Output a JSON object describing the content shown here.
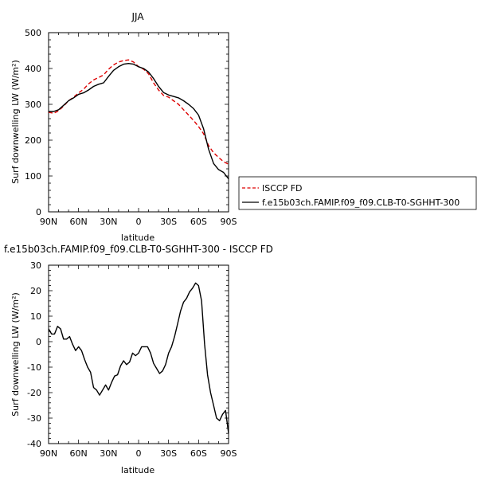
{
  "chart_data": [
    {
      "type": "line",
      "title": "JJA",
      "xlabel": "latitude",
      "ylabel": "Surf downwelling LW (W/m²)",
      "xlim": [
        -90,
        90
      ],
      "ylim": [
        0,
        500
      ],
      "xticks": [
        {
          "value": -90,
          "label": "90N"
        },
        {
          "value": -60,
          "label": "60N"
        },
        {
          "value": -30,
          "label": "30N"
        },
        {
          "value": 0,
          "label": "0"
        },
        {
          "value": 30,
          "label": "30S"
        },
        {
          "value": 60,
          "label": "60S"
        },
        {
          "value": 90,
          "label": "90S"
        }
      ],
      "yticks": [
        0,
        100,
        200,
        300,
        400,
        500
      ],
      "grid": false,
      "legend_position": "right",
      "series": [
        {
          "name": "ISCCP FD",
          "color": "#dd0000",
          "dash": true,
          "x": [
            -90,
            -85,
            -80,
            -75,
            -70,
            -65,
            -60,
            -55,
            -50,
            -45,
            -40,
            -35,
            -30,
            -25,
            -20,
            -15,
            -10,
            -5,
            0,
            5,
            10,
            15,
            20,
            25,
            30,
            35,
            40,
            45,
            50,
            55,
            60,
            65,
            70,
            75,
            80,
            85,
            90
          ],
          "y": [
            278,
            275,
            282,
            295,
            310,
            320,
            332,
            342,
            357,
            368,
            375,
            382,
            398,
            410,
            418,
            422,
            424,
            418,
            405,
            398,
            385,
            360,
            340,
            325,
            320,
            310,
            300,
            285,
            270,
            255,
            238,
            218,
            185,
            165,
            152,
            140,
            133
          ]
        },
        {
          "name": "f.e15b03ch.FAMIP.f09_f09.CLB-T0-SGHHT-300",
          "color": "#000000",
          "dash": false,
          "x": [
            -90,
            -85,
            -80,
            -75,
            -70,
            -65,
            -60,
            -55,
            -50,
            -45,
            -40,
            -35,
            -30,
            -25,
            -20,
            -15,
            -10,
            -5,
            0,
            5,
            10,
            15,
            20,
            25,
            30,
            35,
            40,
            45,
            50,
            55,
            60,
            65,
            70,
            75,
            80,
            85,
            90
          ],
          "y": [
            280,
            280,
            285,
            297,
            310,
            318,
            328,
            332,
            340,
            350,
            356,
            360,
            378,
            395,
            405,
            412,
            414,
            412,
            405,
            400,
            390,
            372,
            350,
            333,
            326,
            322,
            318,
            310,
            300,
            288,
            270,
            232,
            175,
            135,
            118,
            110,
            92
          ]
        }
      ]
    },
    {
      "type": "line",
      "title": "f.e15b03ch.FAMIP.f09_f09.CLB-T0-SGHHT-300 - ISCCP FD",
      "xlabel": "latitude",
      "ylabel": "Surf downwelling LW (W/m²)",
      "xlim": [
        -90,
        90
      ],
      "ylim": [
        -40,
        30
      ],
      "xticks": [
        {
          "value": -90,
          "label": "90N"
        },
        {
          "value": -60,
          "label": "60N"
        },
        {
          "value": -30,
          "label": "30N"
        },
        {
          "value": 0,
          "label": "0"
        },
        {
          "value": 30,
          "label": "30S"
        },
        {
          "value": 60,
          "label": "60S"
        },
        {
          "value": 90,
          "label": "90S"
        }
      ],
      "yticks": [
        -40,
        -30,
        -20,
        -10,
        0,
        10,
        20,
        30
      ],
      "grid": false,
      "series": [
        {
          "color": "#000000",
          "dash": false,
          "x": [
            -90,
            -87,
            -84,
            -81,
            -78,
            -75,
            -72,
            -69,
            -66,
            -63,
            -60,
            -57,
            -54,
            -51,
            -48,
            -45,
            -42,
            -39,
            -36,
            -33,
            -30,
            -27,
            -24,
            -21,
            -18,
            -15,
            -12,
            -9,
            -6,
            -3,
            0,
            3,
            6,
            9,
            12,
            15,
            18,
            21,
            24,
            27,
            30,
            33,
            36,
            39,
            42,
            45,
            48,
            51,
            54,
            57,
            60,
            63,
            66,
            69,
            72,
            75,
            78,
            81,
            84,
            87,
            90
          ],
          "y": [
            5,
            3,
            3,
            6,
            5,
            1,
            1,
            2,
            -1,
            -3.5,
            -2,
            -3.5,
            -7,
            -10,
            -12,
            -18,
            -19,
            -21,
            -19,
            -17,
            -19,
            -16,
            -13.5,
            -13,
            -9.5,
            -7.5,
            -9,
            -8,
            -4.5,
            -5.5,
            -4.5,
            -2,
            -2,
            -2,
            -4.5,
            -8.5,
            -10.5,
            -12.5,
            -11.5,
            -9,
            -4.5,
            -2,
            2,
            7,
            12,
            15.5,
            17,
            19.5,
            21,
            23,
            22,
            16,
            -1,
            -13,
            -20,
            -25,
            -30,
            -31,
            -28.5,
            -27,
            -36
          ]
        }
      ]
    }
  ]
}
